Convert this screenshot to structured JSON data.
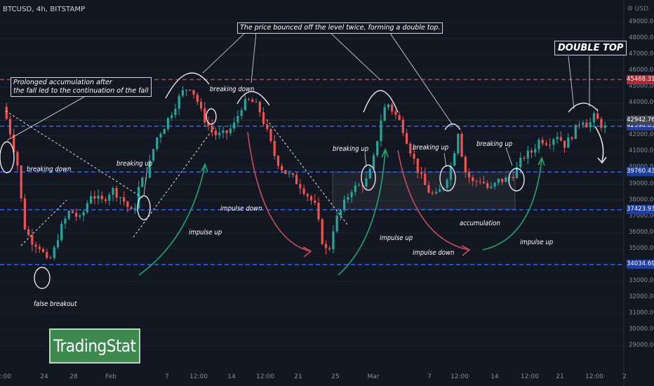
{
  "header": {
    "symbol_line": "BTCUSD, 4h, BITSTAMP",
    "currency": "USD",
    "corner_icon": "settings-icon"
  },
  "chart_data": {
    "type": "candlestick",
    "title": "BTCUSD, 4h, BITSTAMP",
    "ylabel": "USD",
    "ylim": [
      28000,
      50000
    ],
    "y_ticks": [
      29000,
      30000,
      31000,
      32000,
      33000,
      34000,
      35000,
      36000,
      37000,
      38000,
      39000,
      40000,
      41000,
      42000,
      43000,
      44000,
      45000,
      46000,
      47000,
      48000,
      49000
    ],
    "x_ticks": [
      "2:00",
      "24",
      "28",
      "Feb",
      "7",
      "12:00",
      "14",
      "12:00",
      "21",
      "25",
      "Mar",
      "7",
      "12:00",
      "14",
      "12:00",
      "21",
      "12:00",
      "2"
    ],
    "price_path": [
      [
        0,
        43800
      ],
      [
        0.3,
        42500
      ],
      [
        0.7,
        40200
      ],
      [
        1.0,
        36500
      ],
      [
        1.3,
        35600
      ],
      [
        1.8,
        35100
      ],
      [
        2.1,
        34200
      ],
      [
        2.35,
        34500
      ],
      [
        2.7,
        36100
      ],
      [
        3.2,
        37400
      ],
      [
        3.7,
        36800
      ],
      [
        4.2,
        38400
      ],
      [
        4.7,
        37900
      ],
      [
        5.2,
        38700
      ],
      [
        5.7,
        38100
      ],
      [
        6.2,
        37100
      ],
      [
        6.5,
        38900
      ],
      [
        6.9,
        39800
      ],
      [
        7.3,
        41800
      ],
      [
        7.7,
        42600
      ],
      [
        8.1,
        43600
      ],
      [
        8.5,
        44600
      ],
      [
        8.9,
        45100
      ],
      [
        9.2,
        44400
      ],
      [
        9.5,
        43300
      ],
      [
        9.8,
        42600
      ],
      [
        10.2,
        42000
      ],
      [
        10.6,
        42100
      ],
      [
        11.0,
        42600
      ],
      [
        11.4,
        43900
      ],
      [
        11.8,
        44200
      ],
      [
        12.2,
        43700
      ],
      [
        12.6,
        42200
      ],
      [
        13.0,
        40600
      ],
      [
        13.4,
        39800
      ],
      [
        13.8,
        39400
      ],
      [
        14.2,
        38900
      ],
      [
        14.6,
        38200
      ],
      [
        14.9,
        37600
      ],
      [
        15.2,
        35600
      ],
      [
        15.5,
        34600
      ],
      [
        15.8,
        36600
      ],
      [
        16.2,
        37600
      ],
      [
        16.6,
        38700
      ],
      [
        17.0,
        38900
      ],
      [
        17.4,
        39300
      ],
      [
        17.7,
        40700
      ],
      [
        18.0,
        42900
      ],
      [
        18.3,
        44100
      ],
      [
        18.6,
        43500
      ],
      [
        19.0,
        42700
      ],
      [
        19.4,
        41200
      ],
      [
        19.8,
        39800
      ],
      [
        20.2,
        38700
      ],
      [
        20.6,
        38200
      ],
      [
        21.0,
        38900
      ],
      [
        21.4,
        40300
      ],
      [
        21.7,
        42300
      ],
      [
        22.0,
        39900
      ],
      [
        22.4,
        39100
      ],
      [
        22.8,
        39300
      ],
      [
        23.2,
        38600
      ],
      [
        23.6,
        39200
      ],
      [
        24.0,
        39300
      ],
      [
        24.4,
        39700
      ],
      [
        24.8,
        40700
      ],
      [
        25.2,
        41000
      ],
      [
        25.6,
        41800
      ],
      [
        26.0,
        41600
      ],
      [
        26.4,
        42100
      ],
      [
        26.8,
        41400
      ],
      [
        27.2,
        42200
      ],
      [
        27.6,
        43100
      ],
      [
        27.9,
        42600
      ],
      [
        28.2,
        43200
      ],
      [
        28.5,
        42700
      ],
      [
        28.8,
        42400
      ]
    ],
    "levels": [
      {
        "value": 45468.31,
        "label": "45468.31",
        "color": "#ef5350",
        "style": "dashed"
      },
      {
        "value": 42590.05,
        "label": "42590.05",
        "color": "#2962ff",
        "style": "dashed"
      },
      {
        "value": 39760.43,
        "label": "39760.43",
        "color": "#2962ff",
        "style": "dashed"
      },
      {
        "value": 37423.93,
        "label": "37423.93",
        "color": "#2962ff",
        "style": "dashed"
      },
      {
        "value": 34034.69,
        "label": "34034.69",
        "color": "#2962ff",
        "style": "dashed"
      }
    ],
    "last_price": {
      "value": 42942.76,
      "label": "42942.76",
      "color": "#9598a1"
    },
    "up_color": "#26a69a",
    "down_color": "#ef5350"
  },
  "annotations": {
    "accumulation_box": "Prolonged accumulation after\nthe fall led to the continuation of the fall",
    "double_top_note": "The price bounced off the level twice, forming a double top.",
    "double_top": "DOUBLE TOP",
    "labels": [
      {
        "text": "breaking down"
      },
      {
        "text": "breaking up"
      },
      {
        "text": "breaking down"
      },
      {
        "text": "breaking up"
      },
      {
        "text": "breaking up"
      },
      {
        "text": "breaking up"
      },
      {
        "text": "impulse up"
      },
      {
        "text": "impulse down"
      },
      {
        "text": "impulse up"
      },
      {
        "text": "impulse down"
      },
      {
        "text": "impulse up"
      },
      {
        "text": "accumulation"
      },
      {
        "text": "false breakout"
      }
    ]
  },
  "watermark": "TradingStat"
}
